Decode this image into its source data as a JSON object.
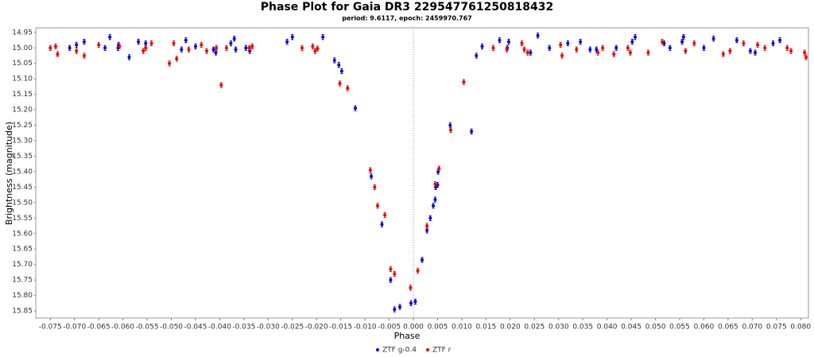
{
  "chart_data": {
    "type": "scatter",
    "title": "Phase Plot for Gaia DR3 2295477612508184​32",
    "subtitle": "period: 9.6117, epoch: 2459970.767",
    "x_label": "Phase",
    "y_label": "Brightness (magnitude)",
    "xlim": [
      -0.078,
      0.0816
    ],
    "ylim": [
      15.873,
      14.935
    ],
    "vline": 0,
    "grid": false,
    "legend": "bottom",
    "xticks": [
      -0.075,
      {
        "value": -0.07,
        "label": "-0.070"
      },
      -0.065,
      {
        "value": -0.06,
        "label": "-0.060"
      },
      -0.055,
      {
        "value": -0.05,
        "label": "-0.050"
      },
      -0.045,
      {
        "value": -0.04,
        "label": "-0.040"
      },
      -0.035,
      {
        "value": -0.03,
        "label": "-0.030"
      },
      -0.025,
      {
        "value": -0.02,
        "label": "-0.020"
      },
      -0.015,
      {
        "value": -0.01,
        "label": "-0.010"
      },
      -0.005,
      {
        "value": 0,
        "label": "0.000"
      },
      0.005,
      {
        "value": 0.01,
        "label": "0.010"
      },
      0.015,
      {
        "value": 0.02,
        "label": "0.020"
      },
      0.025,
      {
        "value": 0.03,
        "label": "0.030"
      },
      0.035,
      {
        "value": 0.04,
        "label": "0.040"
      },
      0.045,
      {
        "value": 0.05,
        "label": "0.050"
      },
      0.055,
      {
        "value": 0.06,
        "label": "0.060"
      },
      0.065,
      {
        "value": 0.07,
        "label": "0.070"
      },
      0.075,
      {
        "value": 0.08,
        "label": "0.080"
      }
    ],
    "yticks": [
      14.95,
      {
        "value": 15,
        "label": "15.00"
      },
      15.05,
      {
        "value": 15.1,
        "label": "15.10"
      },
      15.15,
      {
        "value": 15.2,
        "label": "15.20"
      },
      15.25,
      {
        "value": 15.3,
        "label": "15.30"
      },
      15.35,
      {
        "value": 15.4,
        "label": "15.40"
      },
      15.45,
      {
        "value": 15.5,
        "label": "15.50"
      },
      15.55,
      {
        "value": 15.6,
        "label": "15.60"
      },
      15.65,
      {
        "value": 15.7,
        "label": "15.70"
      },
      15.75,
      {
        "value": 15.8,
        "label": "15.80"
      },
      15.85
    ],
    "series": [
      {
        "name": "ZTF g-0.4",
        "color": "#0000dd",
        "error": 0.008,
        "x": [
          -0.071,
          -0.0696,
          -0.068,
          -0.0637,
          -0.0627,
          -0.0609,
          -0.061,
          -0.0587,
          -0.0568,
          -0.0553,
          -0.0479,
          -0.047,
          -0.045,
          -0.0413,
          -0.0408,
          -0.0377,
          -0.037,
          -0.0367,
          -0.0346,
          -0.0338,
          -0.0261,
          -0.025,
          -0.0187,
          -0.0163,
          -0.0154,
          -0.0148,
          -0.012,
          -0.0087,
          -0.0065,
          -0.0047,
          -0.0039,
          -0.0028,
          -0.0005,
          0.0004,
          0.0018,
          0.0028,
          0.0035,
          0.0041,
          0.0045,
          0.0046,
          0.005,
          0.0051,
          0.0076,
          0.012,
          0.013,
          0.0142,
          0.0178,
          0.0197,
          0.0194,
          0.0242,
          0.0257,
          0.0281,
          0.0319,
          0.0345,
          0.0365,
          0.0378,
          0.0419,
          0.0452,
          0.0458,
          0.0518,
          0.053,
          0.0555,
          0.0558,
          0.06,
          0.062,
          0.0668,
          0.0696,
          0.0706,
          0.0743,
          0.0757
        ],
        "values": [
          15.0,
          14.99,
          14.98,
          15.0,
          14.965,
          14.99,
          15.0,
          15.03,
          14.98,
          14.985,
          15.005,
          14.975,
          14.995,
          15.005,
          15.015,
          14.985,
          14.97,
          15.005,
          15.0,
          15.01,
          14.98,
          14.965,
          14.965,
          15.04,
          15.055,
          15.075,
          15.195,
          15.415,
          15.57,
          15.75,
          15.845,
          15.837,
          15.825,
          15.82,
          15.685,
          15.59,
          15.55,
          15.51,
          15.49,
          15.45,
          15.443,
          15.4,
          15.25,
          15.27,
          15.025,
          14.995,
          14.975,
          14.98,
          15.0,
          15.015,
          14.96,
          15.0,
          14.985,
          14.98,
          15.005,
          15.005,
          15.0,
          14.98,
          14.965,
          14.985,
          15.0,
          14.98,
          14.965,
          15.0,
          14.97,
          14.975,
          15.01,
          15.015,
          14.985,
          14.975
        ]
      },
      {
        "name": "ZTF r",
        "color": "#ee0000",
        "error": 0.008,
        "x": [
          -0.075,
          -0.0739,
          -0.0735,
          -0.0696,
          -0.068,
          -0.065,
          -0.0607,
          -0.0558,
          -0.0553,
          -0.0541,
          -0.0504,
          -0.0495,
          -0.0489,
          -0.0464,
          -0.0438,
          -0.0427,
          -0.0407,
          -0.0397,
          -0.0386,
          -0.0339,
          -0.0333,
          -0.023,
          -0.0208,
          -0.0203,
          -0.0198,
          -0.0152,
          -0.0136,
          -0.0089,
          -0.008,
          -0.0074,
          -0.0059,
          -0.0047,
          -0.0039,
          -0.0006,
          0.0009,
          0.0028,
          0.0045,
          0.0053,
          0.0077,
          0.0104,
          0.0165,
          0.0193,
          0.0224,
          0.0229,
          0.0236,
          0.0304,
          0.0307,
          0.0337,
          0.0381,
          0.0391,
          0.0414,
          0.0443,
          0.0448,
          0.0485,
          0.0514,
          0.0562,
          0.058,
          0.064,
          0.0654,
          0.0682,
          0.0711,
          0.0726,
          0.0772,
          0.078,
          0.0808,
          0.0811
        ],
        "values": [
          15.0,
          14.995,
          15.02,
          15.01,
          15.025,
          14.99,
          14.995,
          15.01,
          15.0,
          14.985,
          15.05,
          14.985,
          15.035,
          15.005,
          14.99,
          15.01,
          15.0,
          15.12,
          15.0,
          15.0,
          14.995,
          15.0,
          14.995,
          15.01,
          15.002,
          15.115,
          15.13,
          15.395,
          15.45,
          15.51,
          15.54,
          15.715,
          15.73,
          15.775,
          15.72,
          15.575,
          15.44,
          15.39,
          15.265,
          15.11,
          15.0,
          15.005,
          14.985,
          15.005,
          15.015,
          14.99,
          15.025,
          15.005,
          15.015,
          15.0,
          15.02,
          15.0,
          15.015,
          15.015,
          14.98,
          15.01,
          14.985,
          15.02,
          15.01,
          14.985,
          14.99,
          15.0,
          15.0,
          15.01,
          15.015,
          15.03
        ]
      }
    ]
  }
}
